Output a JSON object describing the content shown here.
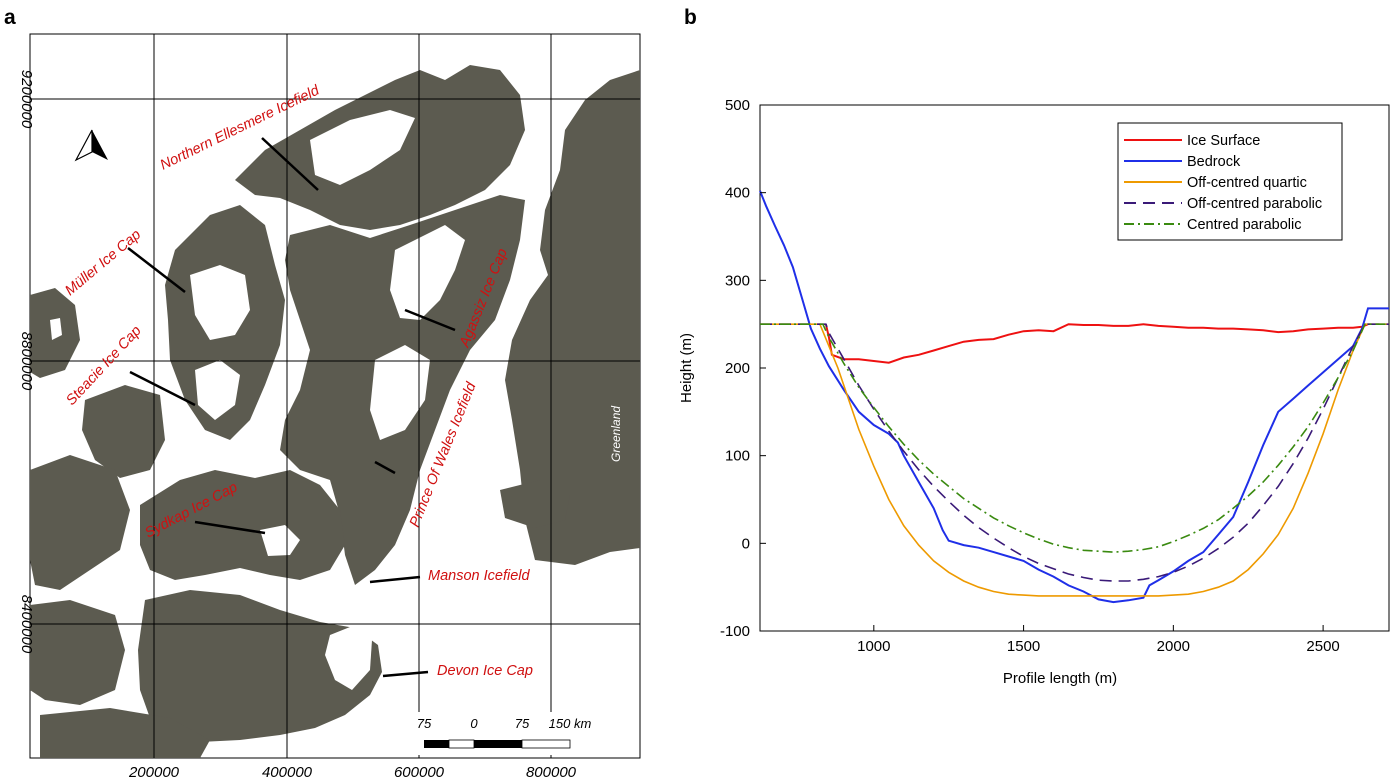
{
  "panels": {
    "a": "a",
    "b": "b"
  },
  "map": {
    "colors": {
      "land": "#5c5b50",
      "ice": "#ffffff",
      "grid": "#000000",
      "labels": "#d01010"
    },
    "labels": {
      "northern_ellesmere": "Northern Ellesmere Icefield",
      "muller": "Müller Ice Cap",
      "steacie": "Steacie Ice Cap",
      "sydkap": "Sydkap Ice Cap",
      "agassiz": "Agassiz Ice Cap",
      "prince_of_wales": "Prince Of Wales Icefield",
      "manson": "Manson Icefield",
      "devon": "Devon Ice Cap",
      "greenland": "Greenland"
    },
    "x_ticks": [
      "200000",
      "400000",
      "600000",
      "800000"
    ],
    "y_ticks": [
      "9200000",
      "8800000",
      "8400000"
    ],
    "scale_bar": {
      "left": "75",
      "zero": "0",
      "mid": "75",
      "right": "150 km"
    }
  },
  "chart_data": {
    "type": "line",
    "xlabel": "Profile length (m)",
    "ylabel": "Height (m)",
    "xlim": [
      620,
      2720
    ],
    "ylim": [
      -100,
      500
    ],
    "x_ticks": [
      1000,
      1500,
      2000,
      2500
    ],
    "y_ticks": [
      -100,
      0,
      100,
      200,
      300,
      400,
      500
    ],
    "grid": false,
    "legend_position": "top-right",
    "series": [
      {
        "name": "Ice Surface",
        "color": "#ee1111",
        "dash": "",
        "points": [
          [
            840,
            250
          ],
          [
            850,
            235
          ],
          [
            860,
            215
          ],
          [
            900,
            210
          ],
          [
            950,
            210
          ],
          [
            1000,
            208
          ],
          [
            1050,
            206
          ],
          [
            1100,
            212
          ],
          [
            1150,
            215
          ],
          [
            1200,
            220
          ],
          [
            1250,
            225
          ],
          [
            1300,
            230
          ],
          [
            1350,
            232
          ],
          [
            1400,
            233
          ],
          [
            1450,
            238
          ],
          [
            1500,
            242
          ],
          [
            1550,
            243
          ],
          [
            1600,
            242
          ],
          [
            1650,
            250
          ],
          [
            1700,
            249
          ],
          [
            1750,
            249
          ],
          [
            1800,
            248
          ],
          [
            1850,
            248
          ],
          [
            1900,
            250
          ],
          [
            1950,
            248
          ],
          [
            2000,
            247
          ],
          [
            2050,
            246
          ],
          [
            2100,
            246
          ],
          [
            2150,
            245
          ],
          [
            2200,
            245
          ],
          [
            2250,
            244
          ],
          [
            2300,
            243
          ],
          [
            2350,
            241
          ],
          [
            2400,
            242
          ],
          [
            2450,
            244
          ],
          [
            2500,
            245
          ],
          [
            2550,
            246
          ],
          [
            2600,
            246
          ],
          [
            2630,
            247
          ],
          [
            2650,
            250
          ]
        ]
      },
      {
        "name": "Bedrock",
        "color": "#1f2fe8",
        "dash": "",
        "points": [
          [
            620,
            402
          ],
          [
            640,
            385
          ],
          [
            670,
            362
          ],
          [
            700,
            340
          ],
          [
            730,
            315
          ],
          [
            760,
            280
          ],
          [
            790,
            245
          ],
          [
            820,
            222
          ],
          [
            850,
            202
          ],
          [
            900,
            175
          ],
          [
            950,
            150
          ],
          [
            1000,
            135
          ],
          [
            1050,
            125
          ],
          [
            1080,
            115
          ],
          [
            1100,
            100
          ],
          [
            1150,
            70
          ],
          [
            1200,
            40
          ],
          [
            1230,
            15
          ],
          [
            1250,
            3
          ],
          [
            1300,
            -2
          ],
          [
            1350,
            -5
          ],
          [
            1400,
            -10
          ],
          [
            1450,
            -15
          ],
          [
            1500,
            -20
          ],
          [
            1550,
            -30
          ],
          [
            1600,
            -38
          ],
          [
            1650,
            -48
          ],
          [
            1700,
            -55
          ],
          [
            1750,
            -64
          ],
          [
            1800,
            -67
          ],
          [
            1850,
            -65
          ],
          [
            1900,
            -62
          ],
          [
            1920,
            -48
          ],
          [
            1950,
            -42
          ],
          [
            2000,
            -32
          ],
          [
            2050,
            -20
          ],
          [
            2100,
            -10
          ],
          [
            2150,
            10
          ],
          [
            2200,
            30
          ],
          [
            2250,
            70
          ],
          [
            2300,
            112
          ],
          [
            2350,
            150
          ],
          [
            2400,
            165
          ],
          [
            2450,
            180
          ],
          [
            2500,
            195
          ],
          [
            2550,
            210
          ],
          [
            2600,
            225
          ],
          [
            2630,
            245
          ],
          [
            2650,
            268
          ],
          [
            2700,
            268
          ],
          [
            2720,
            268
          ]
        ]
      },
      {
        "name": "Off-centred quartic",
        "color": "#ee9a00",
        "dash": "",
        "points": [
          [
            620,
            250
          ],
          [
            820,
            250
          ],
          [
            880,
            200
          ],
          [
            950,
            130
          ],
          [
            1000,
            88
          ],
          [
            1050,
            50
          ],
          [
            1100,
            20
          ],
          [
            1150,
            -2
          ],
          [
            1200,
            -20
          ],
          [
            1250,
            -33
          ],
          [
            1300,
            -43
          ],
          [
            1350,
            -50
          ],
          [
            1400,
            -55
          ],
          [
            1450,
            -58
          ],
          [
            1500,
            -59
          ],
          [
            1550,
            -60
          ],
          [
            1600,
            -60
          ],
          [
            1650,
            -60
          ],
          [
            1700,
            -60
          ],
          [
            1750,
            -60
          ],
          [
            1800,
            -60
          ],
          [
            1850,
            -60
          ],
          [
            1900,
            -60
          ],
          [
            1950,
            -60
          ],
          [
            2000,
            -59
          ],
          [
            2050,
            -58
          ],
          [
            2100,
            -55
          ],
          [
            2150,
            -50
          ],
          [
            2200,
            -43
          ],
          [
            2250,
            -30
          ],
          [
            2300,
            -12
          ],
          [
            2350,
            10
          ],
          [
            2400,
            40
          ],
          [
            2450,
            80
          ],
          [
            2500,
            125
          ],
          [
            2550,
            175
          ],
          [
            2600,
            220
          ],
          [
            2640,
            250
          ],
          [
            2720,
            250
          ]
        ]
      },
      {
        "name": "Off-centred parabolic",
        "color": "#3a1a78",
        "dash": "12,7",
        "points": [
          [
            620,
            250
          ],
          [
            840,
            250
          ],
          [
            850,
            240
          ],
          [
            900,
            210
          ],
          [
            950,
            180
          ],
          [
            1000,
            153
          ],
          [
            1050,
            128
          ],
          [
            1100,
            105
          ],
          [
            1150,
            84
          ],
          [
            1200,
            65
          ],
          [
            1250,
            48
          ],
          [
            1300,
            32
          ],
          [
            1350,
            18
          ],
          [
            1400,
            6
          ],
          [
            1450,
            -5
          ],
          [
            1500,
            -15
          ],
          [
            1550,
            -23
          ],
          [
            1600,
            -29
          ],
          [
            1650,
            -35
          ],
          [
            1700,
            -39
          ],
          [
            1750,
            -42
          ],
          [
            1800,
            -43
          ],
          [
            1850,
            -43
          ],
          [
            1900,
            -41
          ],
          [
            1950,
            -38
          ],
          [
            2000,
            -33
          ],
          [
            2050,
            -26
          ],
          [
            2100,
            -17
          ],
          [
            2150,
            -6
          ],
          [
            2200,
            7
          ],
          [
            2250,
            23
          ],
          [
            2300,
            43
          ],
          [
            2350,
            65
          ],
          [
            2400,
            91
          ],
          [
            2450,
            120
          ],
          [
            2500,
            153
          ],
          [
            2550,
            189
          ],
          [
            2600,
            225
          ],
          [
            2640,
            250
          ],
          [
            2720,
            250
          ]
        ]
      },
      {
        "name": "Centred parabolic",
        "color": "#3a8a10",
        "dash": "10,4,2,4",
        "points": [
          [
            620,
            250
          ],
          [
            830,
            250
          ],
          [
            850,
            235
          ],
          [
            900,
            205
          ],
          [
            950,
            178
          ],
          [
            1000,
            155
          ],
          [
            1050,
            133
          ],
          [
            1100,
            113
          ],
          [
            1150,
            95
          ],
          [
            1200,
            79
          ],
          [
            1250,
            65
          ],
          [
            1300,
            51
          ],
          [
            1350,
            40
          ],
          [
            1400,
            29
          ],
          [
            1450,
            20
          ],
          [
            1500,
            12
          ],
          [
            1550,
            5
          ],
          [
            1600,
            -1
          ],
          [
            1650,
            -5
          ],
          [
            1700,
            -8
          ],
          [
            1750,
            -9
          ],
          [
            1800,
            -10
          ],
          [
            1850,
            -9
          ],
          [
            1900,
            -7
          ],
          [
            1950,
            -4
          ],
          [
            2000,
            2
          ],
          [
            2050,
            9
          ],
          [
            2100,
            17
          ],
          [
            2150,
            27
          ],
          [
            2200,
            40
          ],
          [
            2250,
            54
          ],
          [
            2300,
            70
          ],
          [
            2350,
            89
          ],
          [
            2400,
            110
          ],
          [
            2450,
            133
          ],
          [
            2500,
            160
          ],
          [
            2550,
            189
          ],
          [
            2600,
            220
          ],
          [
            2640,
            250
          ],
          [
            2720,
            250
          ]
        ]
      }
    ]
  }
}
